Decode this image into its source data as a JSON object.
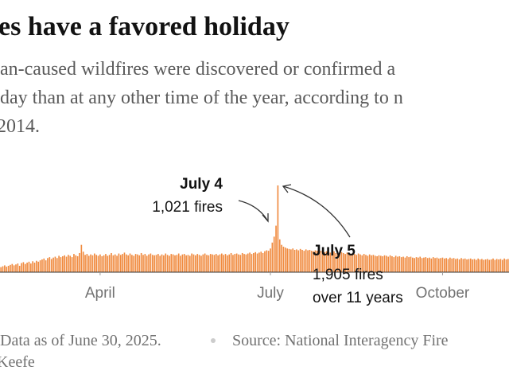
{
  "chart_data": {
    "type": "bar",
    "title": "es have a favored holiday",
    "subtitle": [
      "an-caused wildfires were discovered or confirmed a",
      "day than at any other time of the year, according to n",
      "2014."
    ],
    "annotations": [
      "July 4",
      "1,021 fires",
      "July 5",
      "1,905 fires",
      "over 11 years"
    ],
    "footer": [
      "Data as of June 30, 2025.",
      "Source: National Interagency Fire",
      "Keefe"
    ],
    "color": "#f08a3e",
    "xticks": [
      {
        "value": 53,
        "label": "April"
      },
      {
        "value": 144,
        "label": "July"
      },
      {
        "value": 236,
        "label": "October"
      }
    ],
    "values": [
      110,
      130,
      150,
      120,
      140,
      160,
      180,
      150,
      170,
      190,
      140,
      200,
      220,
      180,
      210,
      230,
      190,
      240,
      210,
      250,
      230,
      260,
      280,
      300,
      260,
      310,
      330,
      290,
      320,
      340,
      310,
      360,
      330,
      350,
      370,
      340,
      380,
      360,
      330,
      400,
      370,
      350,
      420,
      600,
      450,
      380,
      400,
      360,
      390,
      370,
      410,
      380,
      360,
      390,
      350,
      370,
      400,
      360,
      380,
      420,
      370,
      390,
      360,
      410,
      380,
      400,
      430,
      390,
      370,
      410,
      380,
      360,
      400,
      390,
      370,
      420,
      380,
      400,
      360,
      390,
      410,
      380,
      370,
      380,
      400,
      360,
      390,
      370,
      410,
      380,
      360,
      400,
      390,
      370,
      380,
      410,
      360,
      390,
      400,
      370,
      380,
      360,
      410,
      390,
      370,
      400,
      380,
      360,
      390,
      410,
      380,
      370,
      400,
      390,
      380,
      400,
      370,
      390,
      410,
      380,
      400,
      370,
      390,
      420,
      380,
      400,
      410,
      390,
      380,
      420,
      400,
      390,
      410,
      430,
      400,
      420,
      440,
      410,
      430,
      450,
      420,
      460,
      480,
      470,
      520,
      650,
      780,
      1021,
      1905,
      720,
      600,
      560,
      540,
      520,
      510,
      500,
      520,
      490,
      500,
      480,
      510,
      490,
      470,
      500,
      480,
      490,
      470,
      460,
      480,
      470,
      450,
      470,
      460,
      440,
      460,
      450,
      430,
      440,
      460,
      420,
      430,
      410,
      440,
      420,
      400,
      430,
      410,
      390,
      420,
      400,
      380,
      410,
      390,
      370,
      400,
      380,
      360,
      390,
      370,
      380,
      360,
      350,
      370,
      360,
      350,
      370,
      360,
      340,
      370,
      350,
      330,
      360,
      340,
      350,
      330,
      340,
      320,
      350,
      330,
      340,
      320,
      310,
      330,
      320,
      340,
      310,
      320,
      330,
      310,
      320,
      300,
      330,
      310,
      320,
      300,
      310,
      320,
      300,
      310,
      290,
      320,
      300,
      310,
      290,
      300,
      280,
      310,
      290,
      300,
      280,
      290,
      300,
      280,
      290,
      270,
      300,
      280,
      290,
      270,
      280,
      290,
      270,
      280,
      300,
      270,
      290,
      280,
      290,
      270,
      300,
      280,
      290
    ]
  }
}
